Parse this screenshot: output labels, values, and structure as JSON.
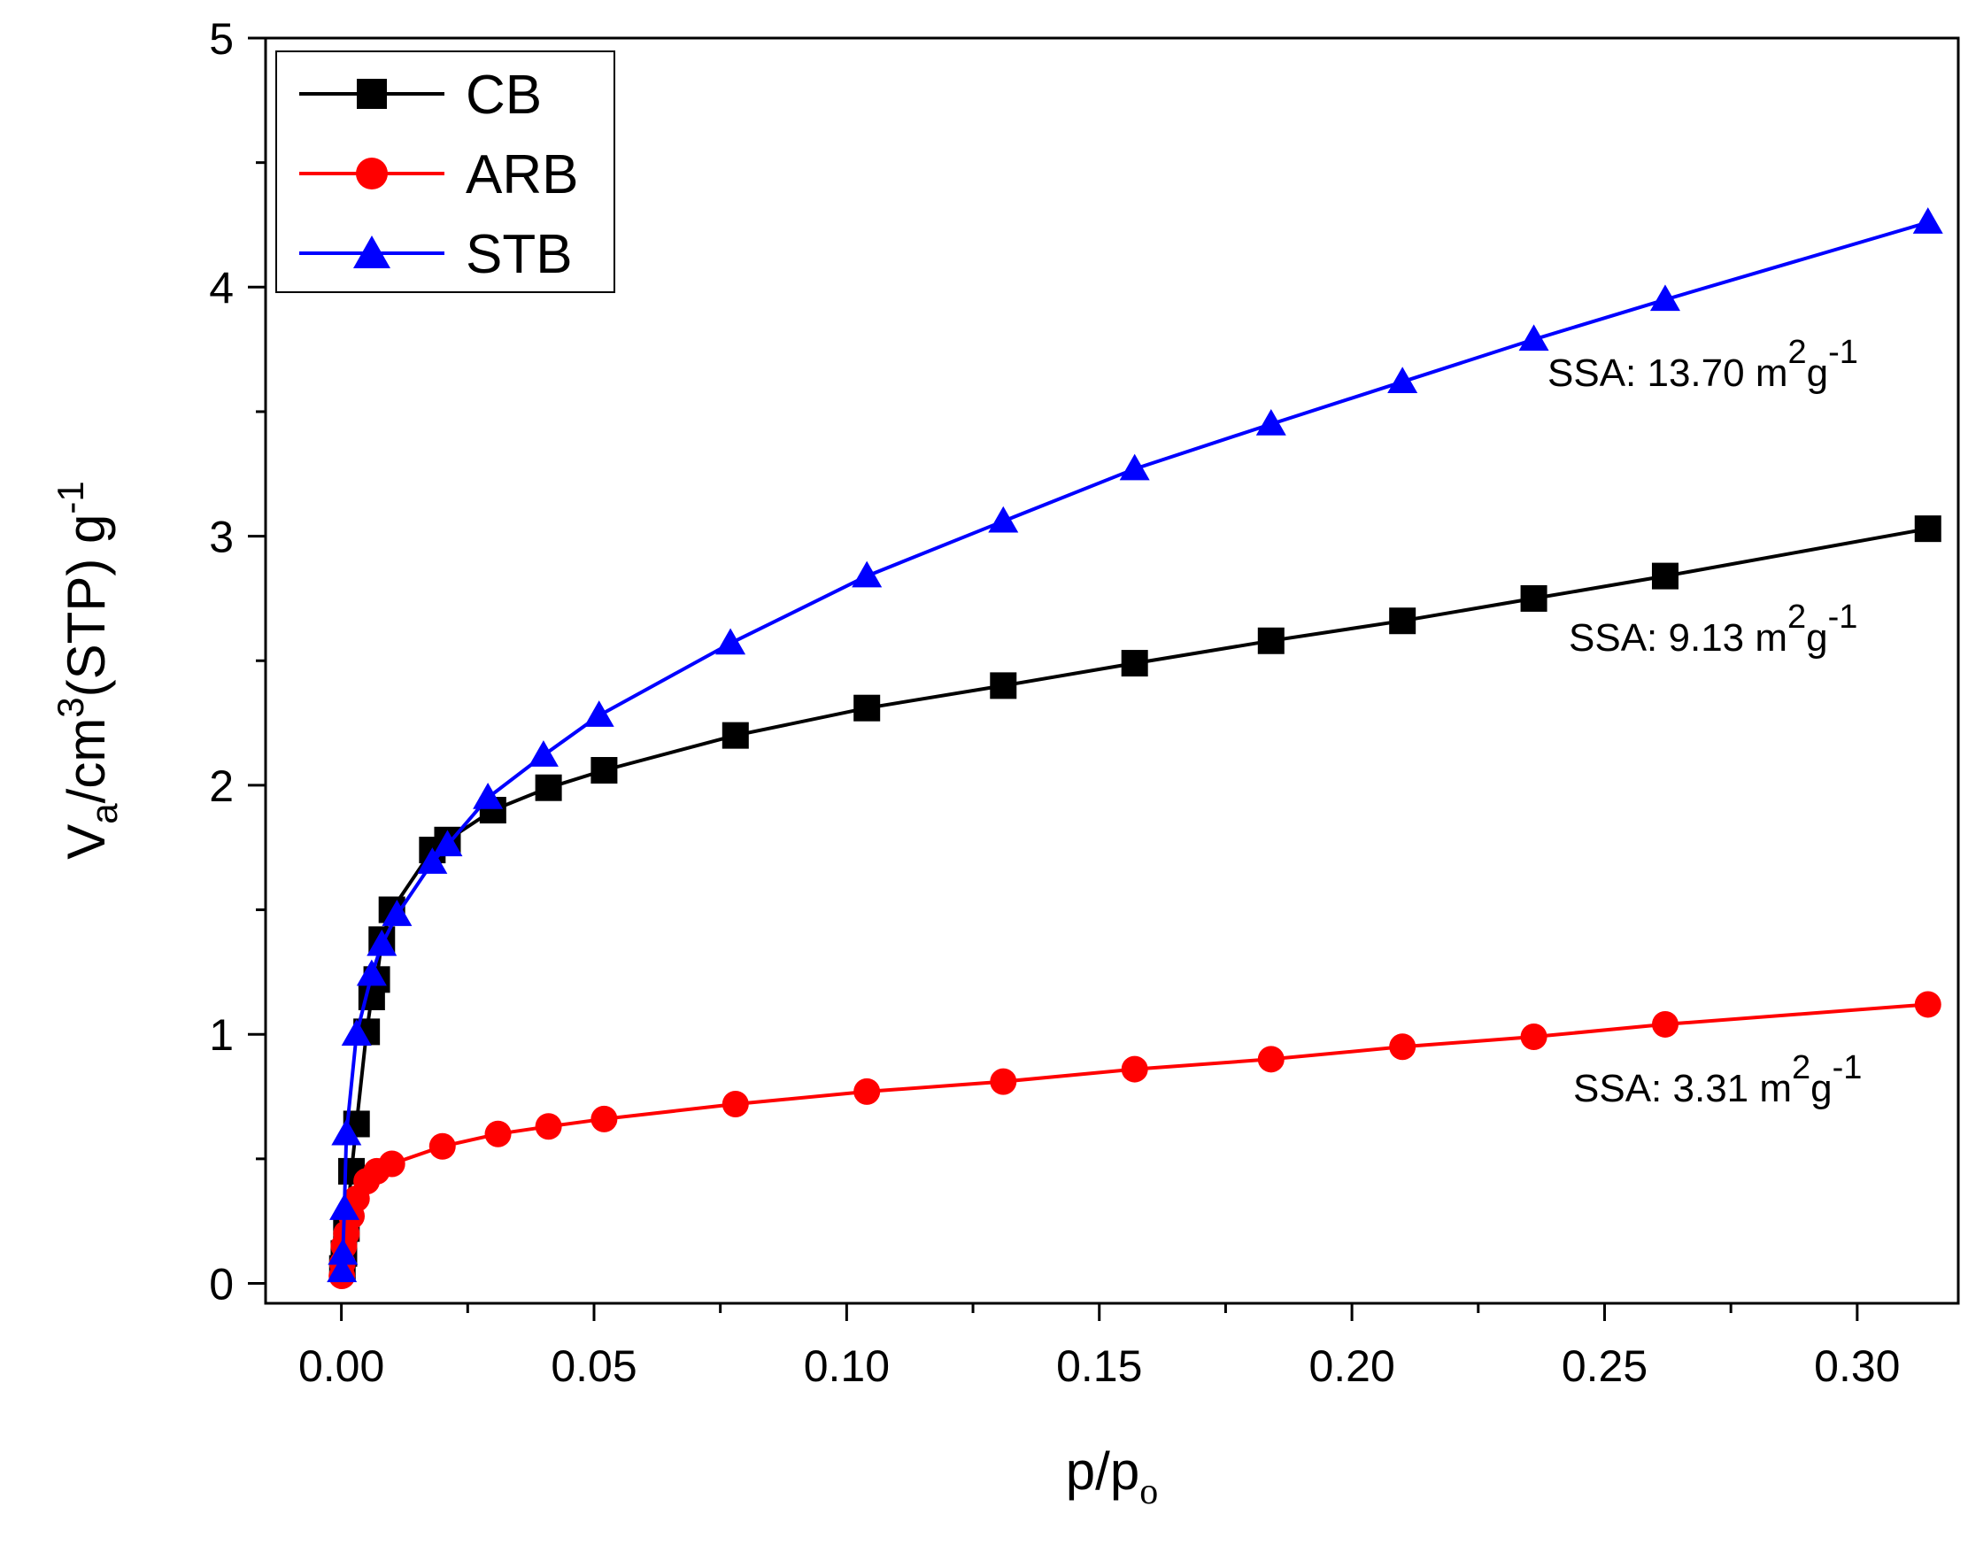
{
  "chart_data": {
    "type": "line",
    "title": "",
    "xlabel": {
      "base": "p/p",
      "sub": "o"
    },
    "ylabel": {
      "v": "V",
      "sub": "a",
      "mid": "/cm",
      "sup": "3",
      "rest": "(STP) g",
      "sup2": "-1"
    },
    "xlim": [
      -0.015,
      0.32
    ],
    "ylim": [
      -0.08,
      5
    ],
    "x_ticks": [
      0.0,
      0.05,
      0.1,
      0.15,
      0.2,
      0.25,
      0.3
    ],
    "x_tick_labels": [
      "0.00",
      "0.05",
      "0.10",
      "0.15",
      "0.20",
      "0.25",
      "0.30"
    ],
    "y_ticks": [
      0,
      1,
      2,
      3,
      4,
      5
    ],
    "y_tick_labels": [
      "0",
      "1",
      "2",
      "3",
      "4",
      "5"
    ],
    "grid": false,
    "legend_position": "top-left",
    "series": [
      {
        "name": "CB",
        "color": "#000000",
        "marker": "square",
        "x": [
          0.0002,
          0.0005,
          0.001,
          0.002,
          0.003,
          0.005,
          0.006,
          0.007,
          0.008,
          0.01,
          0.018,
          0.021,
          0.03,
          0.041,
          0.052,
          0.078,
          0.104,
          0.131,
          0.157,
          0.184,
          0.21,
          0.236,
          0.262,
          0.314
        ],
        "y": [
          0.06,
          0.12,
          0.22,
          0.45,
          0.64,
          1.01,
          1.15,
          1.22,
          1.38,
          1.5,
          1.74,
          1.78,
          1.9,
          1.99,
          2.06,
          2.2,
          2.31,
          2.4,
          2.49,
          2.58,
          2.66,
          2.75,
          2.84,
          3.03
        ]
      },
      {
        "name": "ARB",
        "color": "#ff0000",
        "marker": "circle",
        "x": [
          0.0001,
          0.0002,
          0.0005,
          0.001,
          0.002,
          0.003,
          0.005,
          0.007,
          0.01,
          0.02,
          0.031,
          0.041,
          0.052,
          0.078,
          0.104,
          0.131,
          0.157,
          0.184,
          0.21,
          0.236,
          0.262,
          0.314
        ],
        "y": [
          0.03,
          0.08,
          0.15,
          0.2,
          0.27,
          0.34,
          0.41,
          0.45,
          0.48,
          0.55,
          0.6,
          0.63,
          0.66,
          0.72,
          0.77,
          0.81,
          0.86,
          0.9,
          0.95,
          0.99,
          1.04,
          1.12
        ]
      },
      {
        "name": "STB",
        "color": "#0000ff",
        "marker": "triangle",
        "x": [
          0.0001,
          0.0003,
          0.0006,
          0.001,
          0.003,
          0.006,
          0.008,
          0.011,
          0.018,
          0.021,
          0.029,
          0.04,
          0.051,
          0.077,
          0.104,
          0.131,
          0.157,
          0.184,
          0.21,
          0.236,
          0.262,
          0.314
        ],
        "y": [
          0.05,
          0.12,
          0.3,
          0.6,
          1.0,
          1.24,
          1.36,
          1.48,
          1.69,
          1.76,
          1.95,
          2.12,
          2.28,
          2.57,
          2.84,
          3.06,
          3.27,
          3.45,
          3.62,
          3.79,
          3.95,
          4.26
        ]
      }
    ],
    "annotations": [
      {
        "series": "STB",
        "prefix": "SSA: 13.70 m",
        "sup": "2",
        "unit": "g",
        "tail": "-1"
      },
      {
        "series": "CB",
        "prefix": "SSA: 9.13 m",
        "sup": "2",
        "unit": "g",
        "tail": "-1"
      },
      {
        "series": "ARB",
        "prefix": "SSA: 3.31 m",
        "sup": "2",
        "unit": "g",
        "tail": "-1"
      }
    ]
  }
}
